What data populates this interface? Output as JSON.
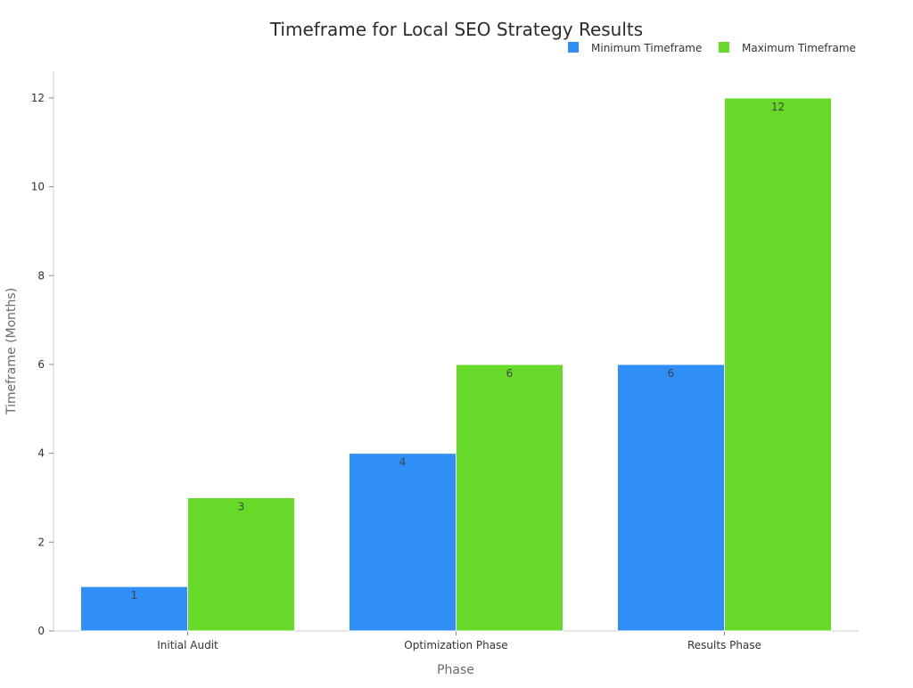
{
  "chart_data": {
    "type": "bar",
    "title": "Timeframe for Local SEO Strategy Results",
    "xlabel": "Phase",
    "ylabel": "Timeframe (Months)",
    "categories": [
      "Initial Audit",
      "Optimization Phase",
      "Results Phase"
    ],
    "series": [
      {
        "name": "Minimum Timeframe",
        "values": [
          1,
          4,
          6
        ],
        "color": "#2f8ff7"
      },
      {
        "name": "Maximum Timeframe",
        "values": [
          3,
          6,
          12
        ],
        "color": "#67da29"
      }
    ],
    "ylim": [
      0,
      12.6
    ],
    "yticks": [
      0,
      2,
      4,
      6,
      8,
      10,
      12
    ],
    "grid": false,
    "legend_position": "top-right",
    "data_labels": true
  }
}
